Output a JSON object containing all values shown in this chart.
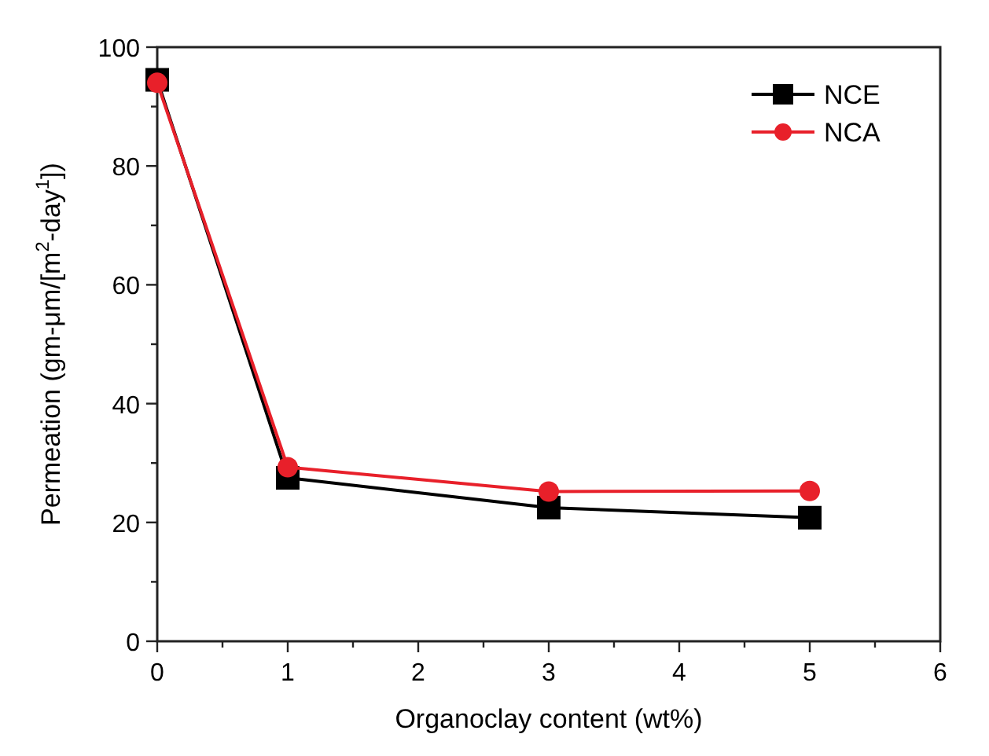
{
  "chart_data": {
    "type": "line",
    "xlabel": "Organoclay content (wt%)",
    "ylabel": "Permeation (gm-μm/[m$^{2}$-day$^{1}$])",
    "x": [
      0,
      1,
      3,
      5
    ],
    "series": [
      {
        "name": "NCE",
        "color": "#000000",
        "marker": "square",
        "values": [
          94.5,
          27.5,
          22.5,
          20.8
        ]
      },
      {
        "name": "NCA",
        "color": "#e8202a",
        "marker": "circle",
        "values": [
          94,
          29.3,
          25.2,
          25.3
        ]
      }
    ],
    "xlim": [
      0,
      6
    ],
    "xticks": [
      0,
      {
        "value": 0.5,
        "label": null
      },
      1,
      {
        "value": 1.5,
        "label": null
      },
      2,
      {
        "value": 2.5,
        "label": null
      },
      3,
      {
        "value": 3.5,
        "label": null
      },
      4,
      {
        "value": 4.5,
        "label": null
      },
      5,
      {
        "value": 5.5,
        "label": null
      },
      6
    ],
    "ylim": [
      0,
      100
    ],
    "yticks": [
      0,
      {
        "value": 10,
        "label": null
      },
      20,
      {
        "value": 30,
        "label": null
      },
      40,
      {
        "value": 50,
        "label": null
      },
      60,
      {
        "value": 70,
        "label": null
      },
      80,
      {
        "value": 90,
        "label": null
      },
      100
    ],
    "legend": "top right",
    "grid": false,
    "line_style": "solid"
  }
}
